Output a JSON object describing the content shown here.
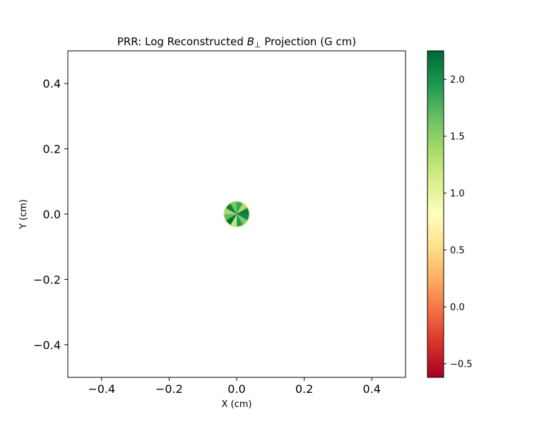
{
  "chart_data": {
    "type": "heatmap",
    "title": "PRR: Log Reconstructed B⊥ Projection (G cm)",
    "title_parts": {
      "prefix": "PRR: Log Reconstructed ",
      "symbol": "B",
      "subscript": "⊥",
      "suffix": " Projection (G cm)"
    },
    "xlabel": "X (cm)",
    "ylabel": "Y (cm)",
    "xlim": [
      -0.5,
      0.5
    ],
    "ylim": [
      -0.5,
      0.5
    ],
    "xticks": [
      -0.4,
      -0.2,
      0.0,
      0.2,
      0.4
    ],
    "xtick_labels": [
      "−0.4",
      "−0.2",
      "0.0",
      "0.2",
      "0.4"
    ],
    "yticks": [
      -0.4,
      -0.2,
      0.0,
      0.2,
      0.4
    ],
    "ytick_labels": [
      "−0.4",
      "−0.2",
      "0.0",
      "0.2",
      "0.4"
    ],
    "grid": false,
    "colormap": "RdYlGn",
    "colorbar": {
      "min": -0.62,
      "max": 2.25,
      "ticks": [
        -0.5,
        0.0,
        0.5,
        1.0,
        1.5,
        2.0
      ],
      "tick_labels": [
        "−0.5",
        "0.0",
        "0.5",
        "1.0",
        "1.5",
        "2.0"
      ]
    },
    "disk": {
      "center": [
        0.0,
        0.0
      ],
      "radius": 0.036,
      "sector_values": [
        2.05,
        1.55,
        1.95,
        1.25,
        2.2,
        1.7,
        1.4,
        2.1,
        1.6,
        1.85,
        1.35,
        2.15
      ],
      "rim_value": 1.15
    }
  }
}
